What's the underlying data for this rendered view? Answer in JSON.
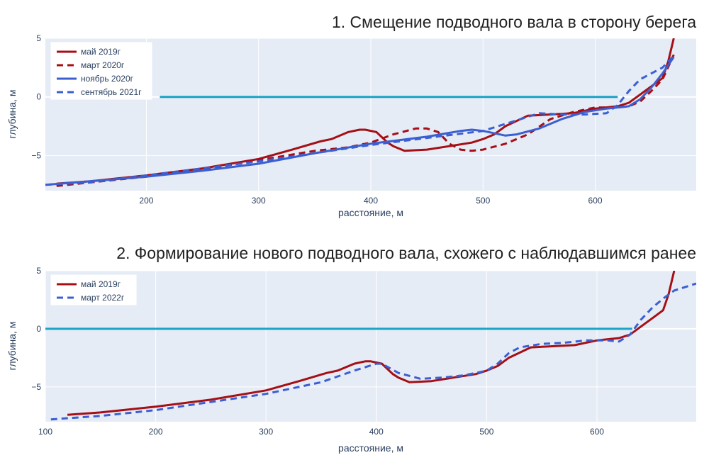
{
  "chart_data": [
    {
      "type": "line",
      "title": "1. Смещение подводного вала в сторону берега",
      "xlabel": "расстояние, м",
      "ylabel": "глубина, м",
      "xlim": [
        110,
        690
      ],
      "ylim": [
        -8,
        5
      ],
      "xticks": [
        200,
        300,
        400,
        500,
        600
      ],
      "yticks": [
        -5,
        0,
        5
      ],
      "grid": true,
      "legend_position": "top-left",
      "reference_line": {
        "y": 0,
        "x_start": 212,
        "x_end": 620,
        "color": "#1ba3c6"
      },
      "series": [
        {
          "name": "май 2019г",
          "color": "#a50f15",
          "dash": "solid",
          "x": [
            120,
            150,
            200,
            250,
            300,
            330,
            355,
            365,
            380,
            390,
            395,
            405,
            415,
            420,
            430,
            450,
            470,
            490,
            500,
            510,
            520,
            540,
            560,
            580,
            600,
            620,
            630,
            640,
            650,
            660,
            665,
            670
          ],
          "y": [
            -7.4,
            -7.2,
            -6.7,
            -6.1,
            -5.3,
            -4.5,
            -3.8,
            -3.6,
            -3.0,
            -2.8,
            -2.8,
            -3.0,
            -3.9,
            -4.2,
            -4.6,
            -4.5,
            -4.2,
            -3.9,
            -3.6,
            -3.2,
            -2.5,
            -1.6,
            -1.5,
            -1.4,
            -1.0,
            -0.8,
            -0.5,
            0.2,
            0.9,
            1.6,
            3.0,
            5.0
          ]
        },
        {
          "name": "март 2020г",
          "color": "#a50f15",
          "dash": "dash",
          "x": [
            120,
            150,
            200,
            250,
            300,
            350,
            380,
            400,
            420,
            440,
            450,
            460,
            470,
            480,
            490,
            500,
            520,
            540,
            560,
            580,
            600,
            620,
            630,
            640,
            650,
            660,
            670
          ],
          "y": [
            -7.6,
            -7.3,
            -6.8,
            -6.2,
            -5.4,
            -4.6,
            -4.3,
            -3.9,
            -3.2,
            -2.7,
            -2.7,
            -3.0,
            -4.0,
            -4.5,
            -4.6,
            -4.5,
            -4.0,
            -3.2,
            -1.9,
            -1.3,
            -0.9,
            -0.9,
            -0.8,
            -0.4,
            0.5,
            1.5,
            3.6
          ]
        },
        {
          "name": "ноябрь 2020г",
          "color": "#3b5fd1",
          "dash": "solid",
          "x": [
            110,
            150,
            200,
            250,
            300,
            350,
            400,
            450,
            480,
            490,
            500,
            520,
            530,
            550,
            570,
            590,
            610,
            620,
            630,
            640,
            650,
            660,
            670
          ],
          "y": [
            -7.5,
            -7.2,
            -6.8,
            -6.3,
            -5.7,
            -4.8,
            -4.0,
            -3.4,
            -2.9,
            -2.8,
            -2.9,
            -3.3,
            -3.2,
            -2.7,
            -1.9,
            -1.3,
            -1.0,
            -0.9,
            -0.8,
            -0.2,
            0.8,
            2.0,
            3.4
          ]
        },
        {
          "name": "сентябрь 2021г",
          "color": "#3b5fd1",
          "dash": "dash",
          "x": [
            110,
            150,
            200,
            250,
            300,
            350,
            400,
            450,
            500,
            530,
            550,
            570,
            590,
            610,
            620,
            630,
            640,
            650,
            660,
            670
          ],
          "y": [
            -7.5,
            -7.3,
            -6.7,
            -6.1,
            -5.5,
            -4.8,
            -4.1,
            -3.5,
            -2.9,
            -2.0,
            -1.4,
            -1.5,
            -1.5,
            -1.4,
            -0.7,
            0.5,
            1.5,
            2.0,
            2.5,
            3.5
          ]
        }
      ]
    },
    {
      "type": "line",
      "title": "2. Формирование нового подводного вала, схожего с наблюдавшимся ранее",
      "xlabel": "расстояние, м",
      "ylabel": "глубина, м",
      "xlim": [
        100,
        690
      ],
      "ylim": [
        -8,
        5
      ],
      "xticks": [
        100,
        200,
        300,
        400,
        500,
        600
      ],
      "yticks": [
        -5,
        0,
        5
      ],
      "grid": true,
      "legend_position": "top-left",
      "reference_line": {
        "y": 0,
        "x_start": 100,
        "x_end": 632,
        "color": "#1ba3c6"
      },
      "series": [
        {
          "name": "май 2019г",
          "color": "#a50f15",
          "dash": "solid",
          "x": [
            120,
            150,
            200,
            250,
            300,
            330,
            355,
            365,
            380,
            390,
            395,
            405,
            415,
            420,
            430,
            450,
            470,
            490,
            500,
            510,
            520,
            540,
            560,
            580,
            600,
            620,
            630,
            640,
            650,
            660,
            665,
            670
          ],
          "y": [
            -7.4,
            -7.2,
            -6.7,
            -6.1,
            -5.3,
            -4.5,
            -3.8,
            -3.6,
            -3.0,
            -2.8,
            -2.8,
            -3.0,
            -3.9,
            -4.2,
            -4.6,
            -4.5,
            -4.2,
            -3.9,
            -3.6,
            -3.2,
            -2.5,
            -1.6,
            -1.5,
            -1.4,
            -1.0,
            -0.8,
            -0.5,
            0.2,
            0.9,
            1.6,
            3.0,
            5.0
          ]
        },
        {
          "name": "март 2022г",
          "color": "#3b5fd1",
          "dash": "dash",
          "x": [
            105,
            150,
            200,
            250,
            300,
            350,
            380,
            400,
            405,
            420,
            440,
            460,
            480,
            500,
            510,
            520,
            530,
            550,
            570,
            590,
            610,
            620,
            630,
            640,
            650,
            660,
            670,
            690
          ],
          "y": [
            -7.8,
            -7.5,
            -7.0,
            -6.3,
            -5.6,
            -4.6,
            -3.6,
            -3.0,
            -3.0,
            -3.8,
            -4.3,
            -4.2,
            -4.0,
            -3.6,
            -3.0,
            -2.1,
            -1.6,
            -1.3,
            -1.2,
            -1.0,
            -1.0,
            -1.1,
            -0.5,
            0.8,
            1.8,
            2.6,
            3.3,
            3.9
          ]
        }
      ]
    }
  ]
}
